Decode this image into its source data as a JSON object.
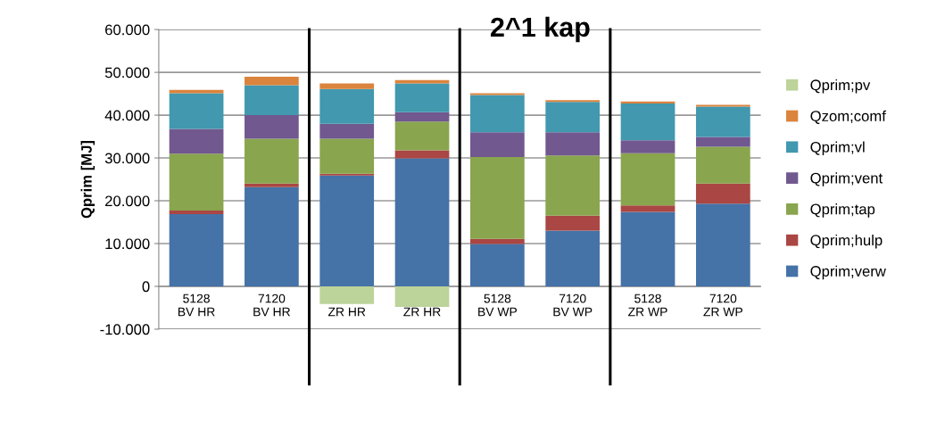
{
  "chart_data": {
    "type": "bar",
    "stacked": true,
    "ylabel": "Qprim [MJ]",
    "annotations": [
      "2^1 kap"
    ],
    "categories": [
      "5128\nBV HR",
      "7120\nBV HR",
      "5128\nZR HR",
      "7120\nZR HR",
      "5128\nBV WP",
      "7120\nBV WP",
      "5128\nZR WP",
      "7120\nZR WP"
    ],
    "series": [
      {
        "name": "Qprim;verw",
        "color": "#4572a7",
        "values": [
          16900,
          23200,
          25900,
          29900,
          9900,
          13000,
          17400,
          19300
        ]
      },
      {
        "name": "Qprim;hulp",
        "color": "#aa4643",
        "values": [
          800,
          800,
          400,
          1900,
          1200,
          3500,
          1500,
          4700
        ]
      },
      {
        "name": "Qprim;tap",
        "color": "#89a54e",
        "values": [
          13300,
          10500,
          8200,
          6700,
          19100,
          14100,
          12200,
          8600
        ]
      },
      {
        "name": "Qprim;vent",
        "color": "#71588f",
        "values": [
          5800,
          5500,
          3500,
          2200,
          5800,
          5400,
          3000,
          2300
        ]
      },
      {
        "name": "Qprim;vl",
        "color": "#4198af",
        "values": [
          8300,
          7000,
          8100,
          6700,
          8700,
          7100,
          8600,
          7100
        ]
      },
      {
        "name": "Qzom;comf",
        "color": "#db843d",
        "values": [
          800,
          2000,
          1300,
          800,
          400,
          400,
          500,
          400
        ]
      },
      {
        "name": "Qprim;pv",
        "color": "#bcd39a",
        "values": [
          null,
          null,
          -4100,
          -4800,
          null,
          null,
          null,
          null
        ]
      }
    ],
    "ylim": [
      -10000,
      60000
    ],
    "yticks": [
      {
        "value": -10000,
        "label": "-10.000"
      },
      {
        "value": 0,
        "label": "0"
      },
      {
        "value": 10000,
        "label": "10.000"
      },
      {
        "value": 20000,
        "label": "20.000"
      },
      {
        "value": 30000,
        "label": "30.000"
      },
      {
        "value": 40000,
        "label": "40.000"
      },
      {
        "value": 50000,
        "label": "50.000"
      },
      {
        "value": 60000,
        "label": "60.000"
      }
    ],
    "grid": "y",
    "legend": "right"
  }
}
